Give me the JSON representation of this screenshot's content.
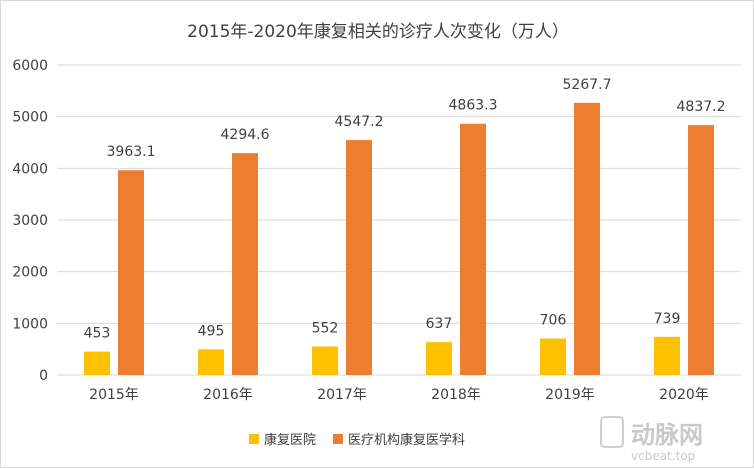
{
  "chart_data": {
    "type": "bar",
    "title": "2015年-2020年康复相关的诊疗人次变化（万人）",
    "categories": [
      "2015年",
      "2016年",
      "2017年",
      "2018年",
      "2019年",
      "2020年"
    ],
    "series": [
      {
        "name": "康复医院",
        "color": "#FFC000",
        "values": [
          453,
          495,
          552,
          637,
          706,
          739
        ],
        "labels": [
          "453",
          "495",
          "552",
          "637",
          "706",
          "739"
        ]
      },
      {
        "name": "医疗机构康复医学科",
        "color": "#ED7D31",
        "values": [
          3963.1,
          4294.6,
          4547.2,
          4863.3,
          5267.7,
          4837.2
        ],
        "labels": [
          "3963.1",
          "4294.6",
          "4547.2",
          "4863.3",
          "5267.7",
          "4837.2"
        ]
      }
    ],
    "yticks": [
      "0",
      "1000",
      "2000",
      "3000",
      "4000",
      "5000",
      "6000"
    ],
    "ylim": [
      0,
      6000
    ],
    "xlabel": "",
    "ylabel": "",
    "grid": true,
    "legend_position": "bottom"
  },
  "watermark": {
    "logo_text": "动脉网",
    "url": "vcbeat.top"
  }
}
